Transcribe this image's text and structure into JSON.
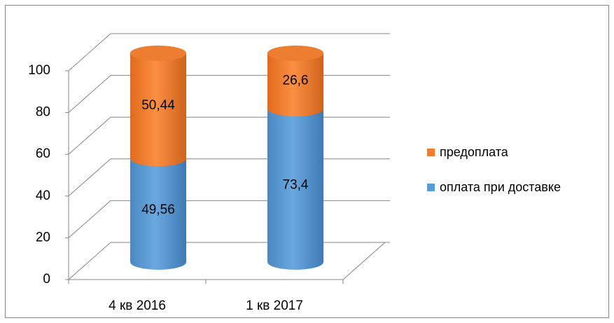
{
  "chart_data": {
    "type": "bar3d_stacked_cylinder",
    "categories": [
      "4 кв 2016",
      "1 кв 2017"
    ],
    "series": [
      {
        "name": "оплата при доставке",
        "color": "#5b9bd5",
        "values": [
          49.56,
          73.4
        ],
        "value_labels": [
          "49,56",
          "73,4"
        ]
      },
      {
        "name": "предоплата",
        "color": "#ed7d31",
        "values": [
          50.44,
          26.6
        ],
        "value_labels": [
          "50,44",
          "26,6"
        ]
      }
    ],
    "ylim": [
      0,
      100
    ],
    "yticks": [
      0,
      20,
      40,
      60,
      80,
      100
    ],
    "grid": true,
    "legend": "right"
  }
}
